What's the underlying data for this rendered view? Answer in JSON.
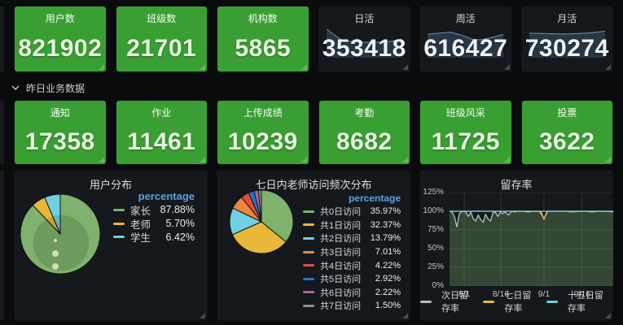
{
  "colors": {
    "page_bg": "#0a0b0c",
    "panel_bg": "#15181c",
    "panel_green": "#3a9f33",
    "spark_fill": "rgba(68,108,138,0.38)",
    "spark_line": "#6d96ad",
    "legend_header_blue": "#5ea1e0",
    "grid": "rgba(255,255,255,0.12)",
    "retention_fill": "rgba(126,178,109,0.3)"
  },
  "row_header": {
    "label": "昨日业务数据"
  },
  "stats_row1": [
    {
      "title": "用户数",
      "value": "821902"
    },
    {
      "title": "班级数",
      "value": "21701"
    },
    {
      "title": "机构数",
      "value": "5865"
    },
    {
      "title": "日活",
      "value": "353418",
      "spark": [
        [
          0,
          0.95
        ],
        [
          0.08,
          0.8
        ],
        [
          0.18,
          0.62
        ],
        [
          0.3,
          0.55
        ],
        [
          0.5,
          0.52
        ],
        [
          0.7,
          0.52
        ],
        [
          0.85,
          0.55
        ],
        [
          1,
          0.62
        ]
      ]
    },
    {
      "title": "周活",
      "value": "616427",
      "spark": [
        [
          0,
          0.78
        ],
        [
          0.15,
          0.82
        ],
        [
          0.3,
          0.85
        ],
        [
          0.45,
          0.75
        ],
        [
          0.58,
          0.62
        ],
        [
          0.7,
          0.6
        ],
        [
          0.85,
          0.68
        ],
        [
          1,
          0.78
        ]
      ]
    },
    {
      "title": "月活",
      "value": "730274",
      "spark": [
        [
          0,
          0.82
        ],
        [
          0.25,
          0.8
        ],
        [
          0.5,
          0.79
        ],
        [
          0.75,
          0.82
        ],
        [
          1,
          0.88
        ]
      ]
    }
  ],
  "stats_row2": [
    {
      "title": "通知",
      "value": "17358"
    },
    {
      "title": "作业",
      "value": "11461"
    },
    {
      "title": "上传成绩",
      "value": "10239"
    },
    {
      "title": "考勤",
      "value": "8682"
    },
    {
      "title": "班级风采",
      "value": "11725"
    },
    {
      "title": "投票",
      "value": "3622"
    }
  ],
  "chart_data": [
    {
      "type": "pie",
      "title": "用户分布",
      "legend_header": "percentage",
      "legend_position": "right",
      "slices": [
        {
          "label": "家长",
          "value": 87.88,
          "pct": "87.88%",
          "color": "#7eb26d"
        },
        {
          "label": "老师",
          "value": 5.7,
          "pct": "5.70%",
          "color": "#eab839"
        },
        {
          "label": "学生",
          "value": 6.42,
          "pct": "6.42%",
          "color": "#6ed0e0"
        }
      ]
    },
    {
      "type": "pie",
      "title": "七日内老师访问频次分布",
      "legend_header": "percentage",
      "legend_position": "right",
      "slices": [
        {
          "label": "共0日访问",
          "value": 35.97,
          "pct": "35.97%",
          "color": "#7eb26d"
        },
        {
          "label": "共1日访问",
          "value": 32.37,
          "pct": "32.37%",
          "color": "#eab839"
        },
        {
          "label": "共2日访问",
          "value": 13.79,
          "pct": "13.79%",
          "color": "#6ed0e0"
        },
        {
          "label": "共3日访问",
          "value": 7.01,
          "pct": "7.01%",
          "color": "#ef843c"
        },
        {
          "label": "共4日访问",
          "value": 4.22,
          "pct": "4.22%",
          "color": "#e24d42"
        },
        {
          "label": "共5日访问",
          "value": 2.92,
          "pct": "2.92%",
          "color": "#1f78c1"
        },
        {
          "label": "共6日访问",
          "value": 2.22,
          "pct": "2.22%",
          "color": "#b163a8"
        },
        {
          "label": "共7日访问",
          "value": 1.5,
          "pct": "1.50%",
          "color": "#8f8f99"
        }
      ]
    },
    {
      "type": "line",
      "title": "留存率",
      "grid": true,
      "legend_position": "bottom",
      "ylim": [
        0,
        125
      ],
      "yticks": [
        {
          "label": "0%",
          "pct": 0
        },
        {
          "label": "25%",
          "pct": 25
        },
        {
          "label": "50%",
          "pct": 50
        },
        {
          "label": "75%",
          "pct": 75
        },
        {
          "label": "100%",
          "pct": 100
        },
        {
          "label": "125%",
          "pct": 125
        }
      ],
      "xticks": [
        {
          "label": "8/1",
          "pos": 0.09
        },
        {
          "label": "8/16",
          "pos": 0.313
        },
        {
          "label": "9/1",
          "pos": 0.577
        },
        {
          "label": "9/16",
          "pos": 0.81
        }
      ],
      "series": [
        {
          "name": "次日留存率",
          "color": "#b9bdc0",
          "area": true,
          "points": [
            [
              0,
              100
            ],
            [
              0.015,
              99
            ],
            [
              0.03,
              93
            ],
            [
              0.045,
              79
            ],
            [
              0.06,
              97
            ],
            [
              0.08,
              100
            ],
            [
              0.1,
              99
            ],
            [
              0.115,
              93
            ],
            [
              0.13,
              99
            ],
            [
              0.145,
              90
            ],
            [
              0.16,
              87
            ],
            [
              0.175,
              95
            ],
            [
              0.19,
              89
            ],
            [
              0.205,
              85
            ],
            [
              0.22,
              96
            ],
            [
              0.235,
              90
            ],
            [
              0.25,
              87
            ],
            [
              0.265,
              98
            ],
            [
              0.28,
              99
            ],
            [
              0.295,
              93
            ],
            [
              0.31,
              99
            ],
            [
              0.325,
              97
            ],
            [
              0.34,
              99
            ],
            [
              0.36,
              95
            ],
            [
              0.38,
              100
            ],
            [
              0.4,
              99
            ],
            [
              0.42,
              100
            ],
            [
              0.45,
              100
            ],
            [
              0.48,
              99
            ],
            [
              0.51,
              100
            ],
            [
              0.54,
              100
            ],
            [
              0.56,
              99
            ],
            [
              0.577,
              89
            ],
            [
              0.595,
              100
            ],
            [
              0.63,
              100
            ],
            [
              0.67,
              100
            ],
            [
              0.71,
              100
            ],
            [
              0.75,
              99
            ],
            [
              0.79,
              100
            ],
            [
              0.83,
              100
            ],
            [
              0.87,
              99
            ],
            [
              0.91,
              100
            ],
            [
              0.95,
              100
            ],
            [
              1,
              99
            ]
          ]
        },
        {
          "name": "七日留存率",
          "color": "#eab839",
          "points": [
            [
              0,
              100
            ],
            [
              0.55,
              100
            ],
            [
              0.577,
              90
            ],
            [
              0.6,
              100
            ],
            [
              1,
              100
            ]
          ]
        },
        {
          "name": "十五日留存率",
          "color": "#6ed0e0",
          "points": [
            [
              0,
              100
            ],
            [
              1,
              100
            ]
          ]
        }
      ]
    }
  ]
}
